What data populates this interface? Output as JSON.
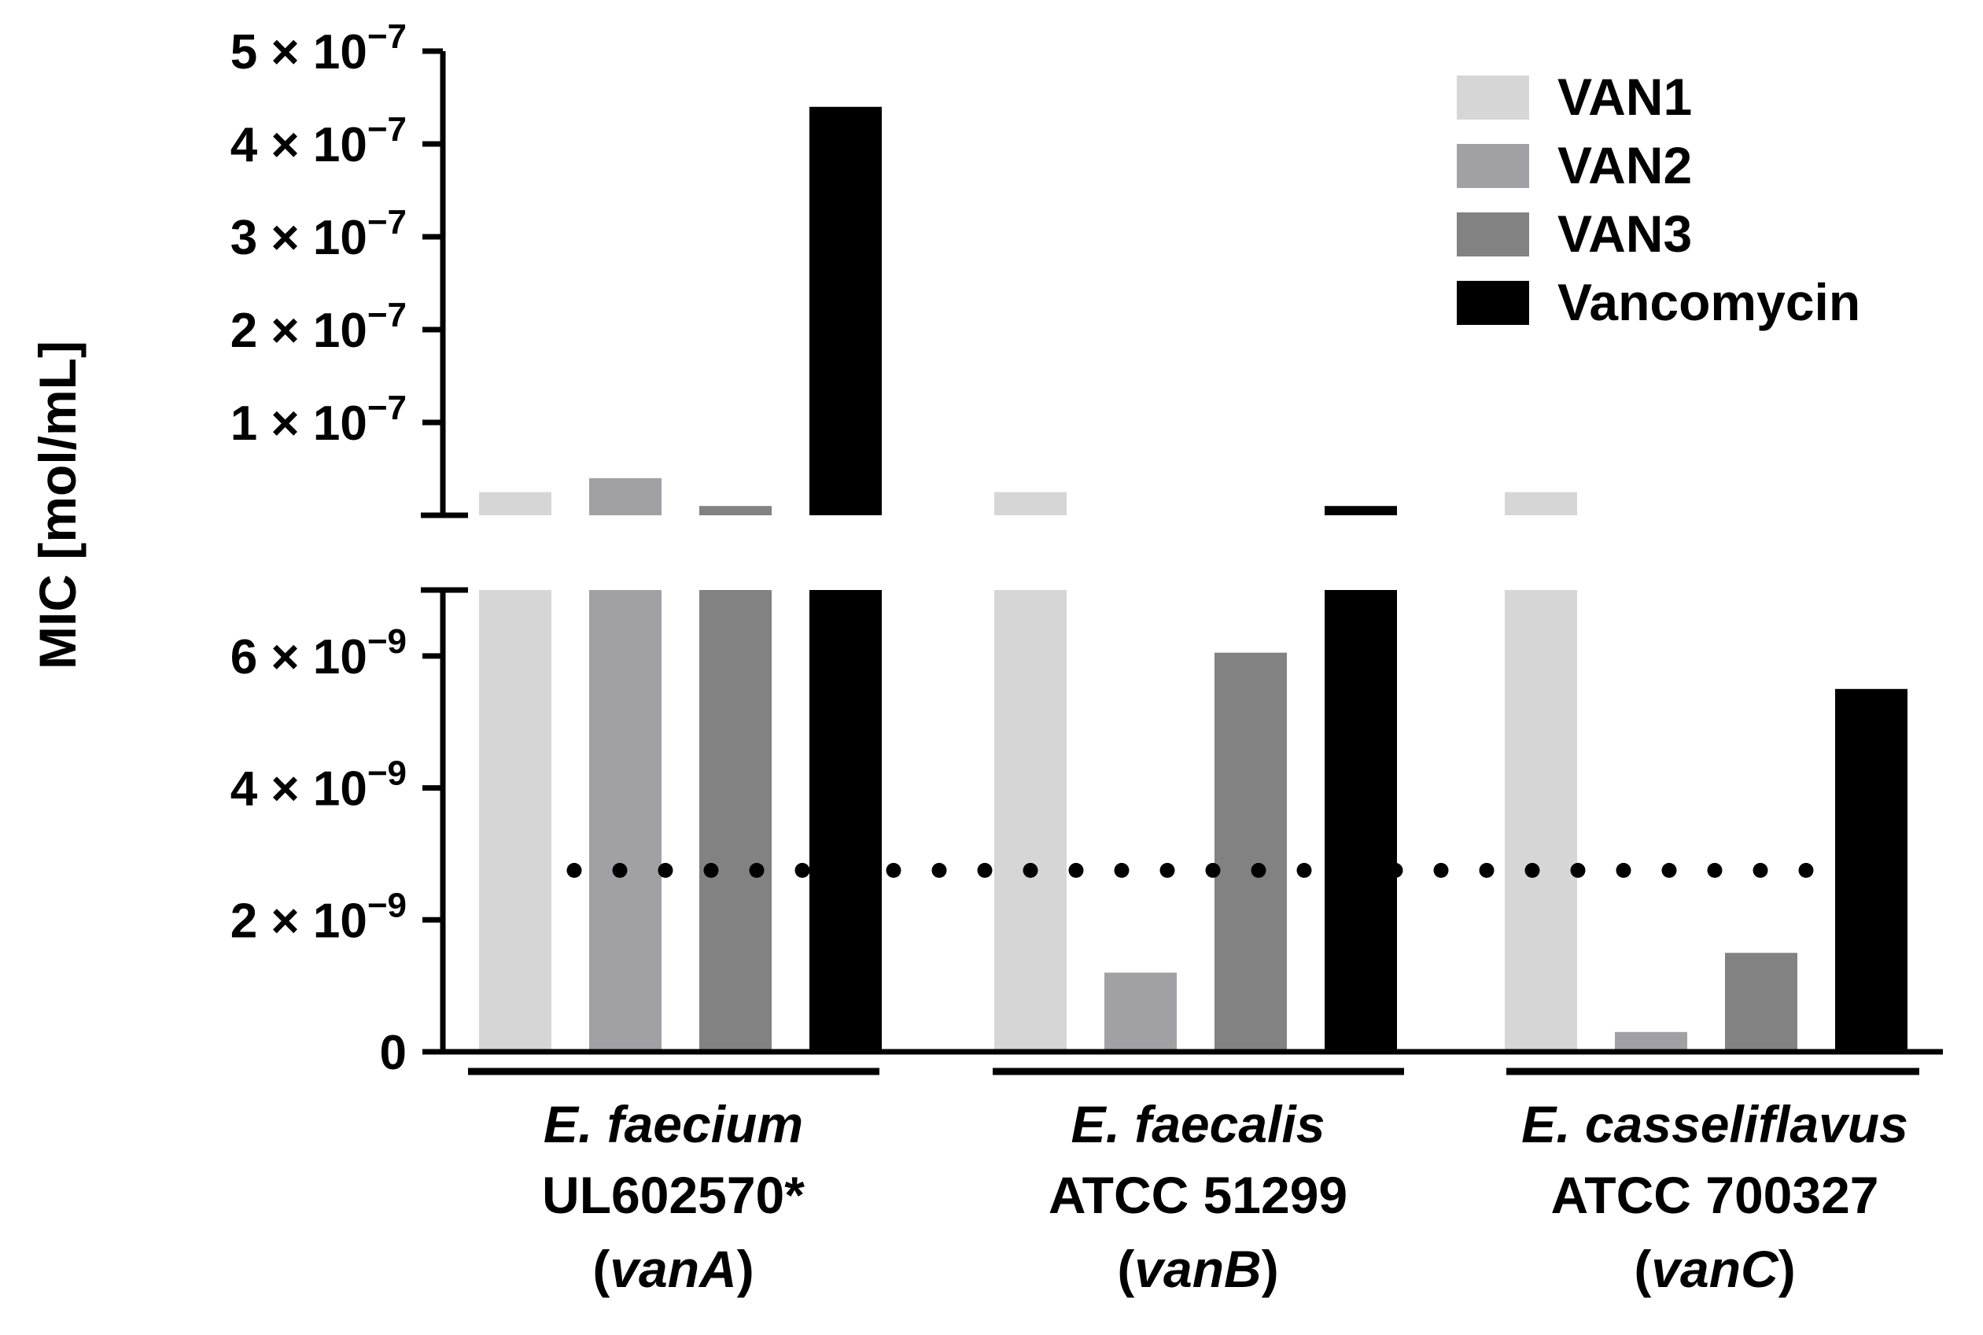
{
  "chart_data": {
    "type": "bar",
    "ylabel": "MIC [mol/mL]",
    "broken_axis": true,
    "axis_break_value": 7e-09,
    "lower_ylim": [
      0,
      7e-09
    ],
    "upper_ylim": [
      0,
      5e-07
    ],
    "lower_ticks": [
      {
        "value": 0,
        "label": "0",
        "exp": ""
      },
      {
        "value": 2e-09,
        "label": "2 × 10",
        "exp": "−9"
      },
      {
        "value": 4e-09,
        "label": "4 × 10",
        "exp": "−9"
      },
      {
        "value": 6e-09,
        "label": "6 × 10",
        "exp": "−9"
      }
    ],
    "upper_ticks": [
      {
        "value": 1e-07,
        "label": "1 × 10",
        "exp": "−7"
      },
      {
        "value": 2e-07,
        "label": "2 × 10",
        "exp": "−7"
      },
      {
        "value": 3e-07,
        "label": "3 × 10",
        "exp": "−7"
      },
      {
        "value": 4e-07,
        "label": "4 × 10",
        "exp": "−7"
      },
      {
        "value": 5e-07,
        "label": "5 × 10",
        "exp": "−7"
      }
    ],
    "groups": [
      {
        "species": "E. faecium",
        "strain": "UL602570*",
        "gene_prefix": "(",
        "gene": "vanA",
        "gene_suffix": ")"
      },
      {
        "species": "E. faecalis",
        "strain": "ATCC 51299",
        "gene_prefix": "(",
        "gene": "vanB",
        "gene_suffix": ")"
      },
      {
        "species": "E. casseliflavus",
        "strain": "ATCC 700327",
        "gene_prefix": "(",
        "gene": "vanC",
        "gene_suffix": ")"
      }
    ],
    "series": [
      {
        "name": "VAN1",
        "color": "#d6d6d6",
        "values": [
          2.5e-08,
          2.5e-08,
          2.5e-08
        ]
      },
      {
        "name": "VAN2",
        "color": "#a1a1a5",
        "values": [
          4e-08,
          1.2e-09,
          3e-10
        ]
      },
      {
        "name": "VAN3",
        "color": "#828282",
        "values": [
          1e-08,
          6.05e-09,
          1.5e-09
        ]
      },
      {
        "name": "Vancomycin",
        "color": "#000000",
        "values": [
          4.4e-07,
          1e-08,
          5.5e-09
        ]
      }
    ],
    "reference_line": {
      "value": 2.75e-09,
      "style": "dotted"
    },
    "legend_position": "top-right"
  }
}
